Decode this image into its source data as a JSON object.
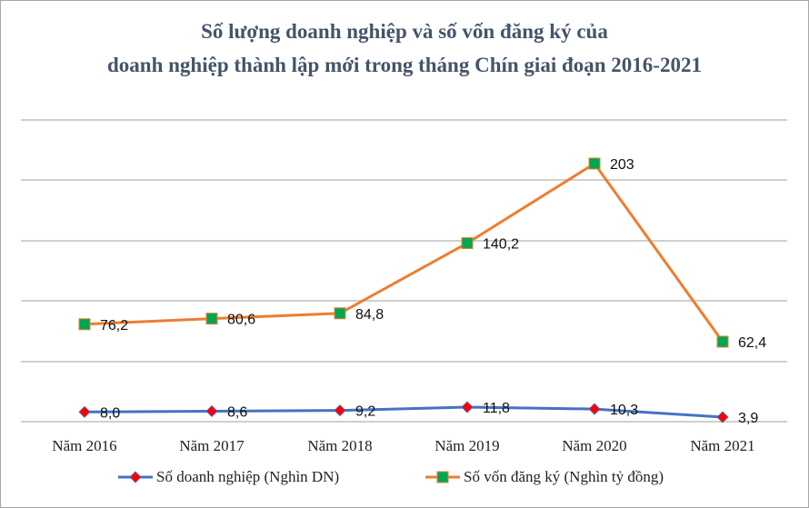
{
  "title": {
    "line1": "Số lượng doanh nghiệp và số vốn đăng ký của",
    "line2": "doanh nghiệp thành lập mới trong tháng Chín giai đoạn 2016-2021"
  },
  "legend": {
    "series1": "Số doanh nghiệp (Nghìn DN)",
    "series2": "Số vốn đăng ký (Nghìn tỷ đồng)"
  },
  "colors": {
    "series1_line": "#4472c4",
    "series1_marker": "#ff0000",
    "series2_line": "#ed7d31",
    "series2_marker": "#00a651",
    "grid": "#bfbfbf",
    "title": "#44546a"
  },
  "chart_data": {
    "type": "line",
    "title": "Số lượng doanh nghiệp và số vốn đăng ký của doanh nghiệp thành lập mới trong tháng Chín giai đoạn 2016-2021",
    "categories": [
      "Năm 2016",
      "Năm 2017",
      "Năm 2018",
      "Năm 2019",
      "Năm 2020",
      "Năm 2021"
    ],
    "series": [
      {
        "name": "Số doanh nghiệp (Nghìn DN)",
        "values": [
          8.0,
          8.6,
          9.2,
          11.8,
          10.3,
          3.9
        ],
        "labels": [
          "8,0",
          "8,6",
          "9,2",
          "11,8",
          "10,3",
          "3,9"
        ],
        "marker": "diamond"
      },
      {
        "name": "Số vốn đăng ký (Nghìn tỷ đồng)",
        "values": [
          76.2,
          80.6,
          84.8,
          140.2,
          203,
          62.4
        ],
        "labels": [
          "76,2",
          "80,6",
          "84,8",
          "140,2",
          "203",
          "62,4"
        ],
        "marker": "square"
      }
    ],
    "xlabel": "",
    "ylabel": "",
    "grid": true,
    "y_axis_visible": false,
    "legend_position": "bottom"
  }
}
